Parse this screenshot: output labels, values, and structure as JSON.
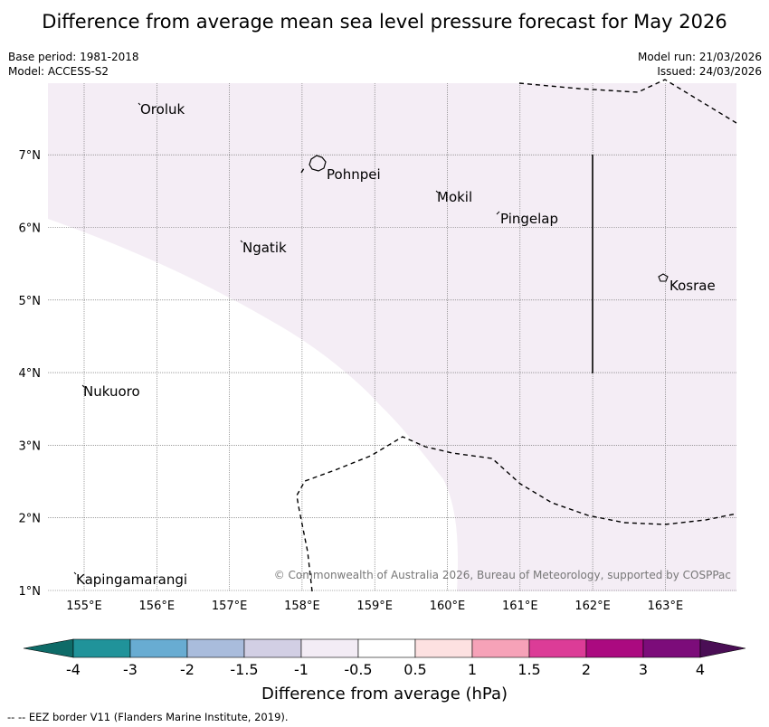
{
  "title": "Difference from average mean sea level pressure forecast for May 2026",
  "meta": {
    "base_period": "Base period: 1981-2018",
    "model": "Model: ACCESS-S2",
    "model_run": "Model run: 21/03/2026",
    "issued": "Issued: 24/03/2026"
  },
  "map": {
    "lon_ticks": [
      "155°E",
      "156°E",
      "157°E",
      "158°E",
      "159°E",
      "160°E",
      "161°E",
      "162°E",
      "163°E"
    ],
    "lat_ticks": [
      "1°N",
      "2°N",
      "3°N",
      "4°N",
      "5°N",
      "6°N",
      "7°N"
    ],
    "places": [
      "Oroluk",
      "Pohnpei",
      "Mokil",
      "Pingelap",
      "Ngatik",
      "Kosrae",
      "Nukuoro",
      "Kapingamarangi"
    ],
    "copyright": "© Commonwealth of Australia 2026, Bureau of Meteorology, supported by COSPPac"
  },
  "legend": {
    "title": "Difference from average (hPa)",
    "labels": [
      "-4",
      "-3",
      "-2",
      "-1.5",
      "-1",
      "-0.5",
      "0.5",
      "1",
      "1.5",
      "2",
      "3",
      "4"
    ],
    "colors": [
      "#0e6b68",
      "#20939a",
      "#68acd2",
      "#a9bcdc",
      "#d2cfe4",
      "#f3ecf5",
      "#ffffff",
      "#fde1e1",
      "#f6a2b8",
      "#dc3c97",
      "#ab0a80",
      "#7c0c7a",
      "#4a0e55"
    ]
  },
  "footnote": "-- -- EEZ border V11 (Flanders Marine Institute, 2019)."
}
